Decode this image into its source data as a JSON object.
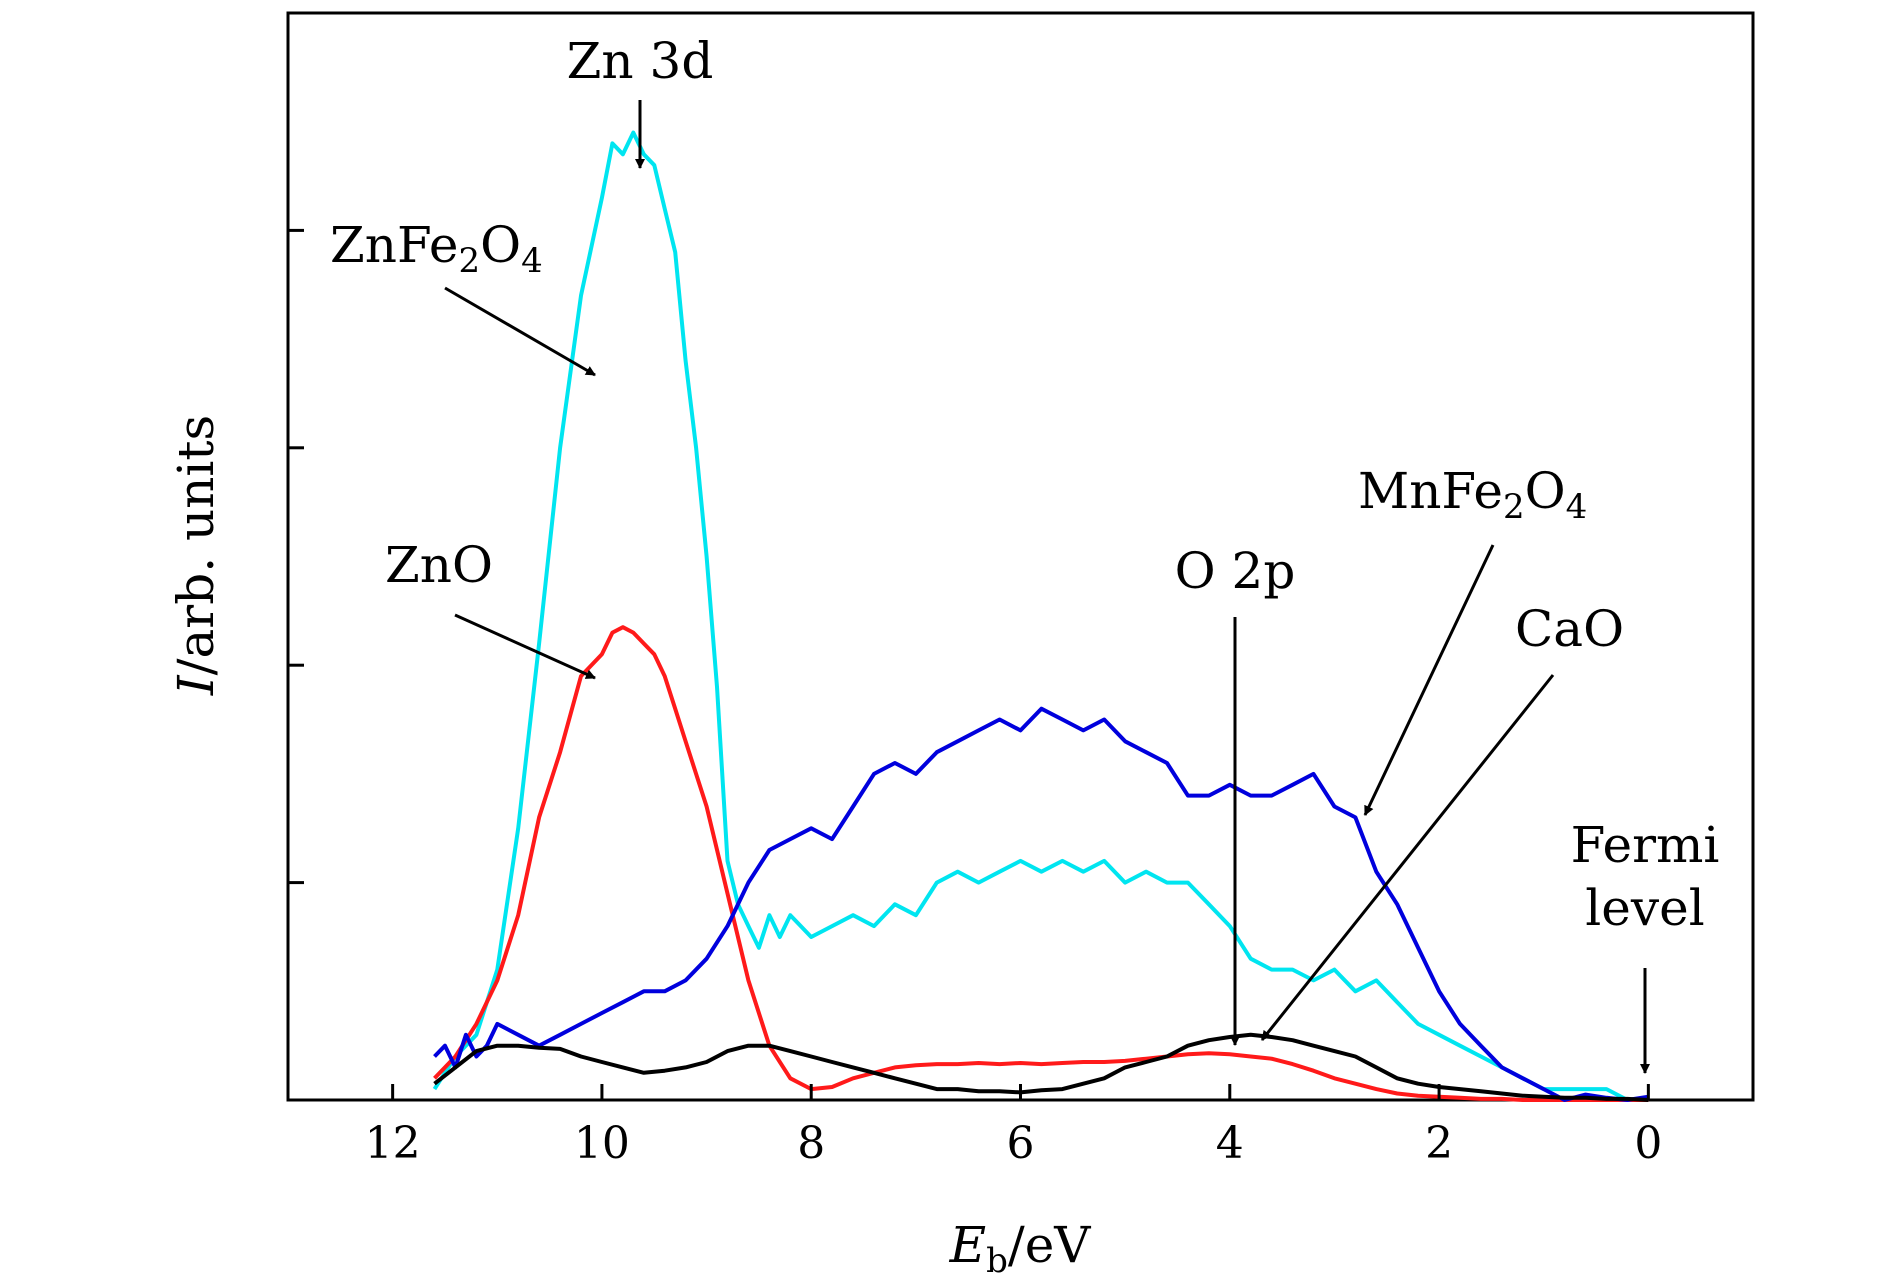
{
  "chart_data": {
    "type": "line",
    "title": "",
    "xlabel": {
      "main": "E",
      "sub": "b",
      "rest": "/eV"
    },
    "ylabel": {
      "main": "I",
      "rest": "/arb. units"
    },
    "xlim": [
      13,
      -1
    ],
    "ylim": [
      0,
      1.0
    ],
    "x_reversed": true,
    "x_ticks": [
      12,
      10,
      8,
      6,
      4,
      2,
      0
    ],
    "y_ticks": [
      0.2,
      0.4,
      0.6,
      0.8,
      1.0
    ],
    "y_tick_labels_shown": false,
    "grid": false,
    "legend": "none",
    "colors": {
      "ZnFe2O4": "#00e5f0",
      "ZnO": "#ff1a1a",
      "MnFe2O4": "#0000dd",
      "CaO": "#000000"
    },
    "series": [
      {
        "name": "ZnFe2O4",
        "x": [
          11.6,
          11.4,
          11.2,
          11.0,
          10.8,
          10.6,
          10.4,
          10.2,
          10.0,
          9.9,
          9.8,
          9.7,
          9.6,
          9.5,
          9.4,
          9.3,
          9.2,
          9.1,
          9.0,
          8.9,
          8.8,
          8.7,
          8.6,
          8.5,
          8.4,
          8.3,
          8.2,
          8.1,
          8.0,
          7.8,
          7.6,
          7.4,
          7.2,
          7.0,
          6.8,
          6.6,
          6.4,
          6.2,
          6.0,
          5.8,
          5.6,
          5.4,
          5.2,
          5.0,
          4.8,
          4.6,
          4.4,
          4.2,
          4.0,
          3.8,
          3.6,
          3.4,
          3.2,
          3.0,
          2.8,
          2.6,
          2.4,
          2.2,
          2.0,
          1.8,
          1.6,
          1.4,
          1.2,
          1.0,
          0.8,
          0.6,
          0.4,
          0.2,
          0.0
        ],
        "y": [
          0.01,
          0.04,
          0.06,
          0.12,
          0.25,
          0.42,
          0.6,
          0.74,
          0.83,
          0.88,
          0.87,
          0.89,
          0.87,
          0.86,
          0.82,
          0.78,
          0.68,
          0.6,
          0.5,
          0.38,
          0.22,
          0.18,
          0.16,
          0.14,
          0.17,
          0.15,
          0.17,
          0.16,
          0.15,
          0.16,
          0.17,
          0.16,
          0.18,
          0.17,
          0.2,
          0.21,
          0.2,
          0.21,
          0.22,
          0.21,
          0.22,
          0.21,
          0.22,
          0.2,
          0.21,
          0.2,
          0.2,
          0.18,
          0.16,
          0.13,
          0.12,
          0.12,
          0.11,
          0.12,
          0.1,
          0.11,
          0.09,
          0.07,
          0.06,
          0.05,
          0.04,
          0.03,
          0.02,
          0.01,
          0.01,
          0.01,
          0.01,
          0.0,
          0.0
        ]
      },
      {
        "name": "ZnO",
        "x": [
          11.6,
          11.4,
          11.2,
          11.0,
          10.8,
          10.6,
          10.4,
          10.2,
          10.0,
          9.9,
          9.8,
          9.7,
          9.6,
          9.5,
          9.4,
          9.3,
          9.2,
          9.0,
          8.8,
          8.6,
          8.4,
          8.2,
          8.0,
          7.8,
          7.6,
          7.4,
          7.2,
          7.0,
          6.8,
          6.6,
          6.4,
          6.2,
          6.0,
          5.8,
          5.6,
          5.4,
          5.2,
          5.0,
          4.8,
          4.6,
          4.4,
          4.2,
          4.0,
          3.8,
          3.6,
          3.4,
          3.2,
          3.0,
          2.8,
          2.6,
          2.4,
          2.2,
          2.0,
          1.8,
          1.6,
          1.4,
          1.2,
          1.0,
          0.8,
          0.6,
          0.4,
          0.2,
          0.0
        ],
        "y": [
          0.02,
          0.04,
          0.07,
          0.11,
          0.17,
          0.26,
          0.32,
          0.39,
          0.41,
          0.43,
          0.435,
          0.43,
          0.42,
          0.41,
          0.39,
          0.36,
          0.33,
          0.27,
          0.19,
          0.11,
          0.05,
          0.02,
          0.01,
          0.012,
          0.02,
          0.025,
          0.03,
          0.032,
          0.033,
          0.033,
          0.034,
          0.033,
          0.034,
          0.033,
          0.034,
          0.035,
          0.035,
          0.036,
          0.038,
          0.04,
          0.042,
          0.043,
          0.042,
          0.04,
          0.038,
          0.033,
          0.027,
          0.02,
          0.015,
          0.01,
          0.006,
          0.004,
          0.003,
          0.002,
          0.001,
          0.001,
          0.0,
          0.0,
          0.0,
          0.0,
          0.0,
          0.0,
          0.0
        ]
      },
      {
        "name": "MnFe2O4",
        "x": [
          11.6,
          11.5,
          11.4,
          11.3,
          11.2,
          11.1,
          11.0,
          10.8,
          10.6,
          10.4,
          10.2,
          10.0,
          9.8,
          9.6,
          9.4,
          9.2,
          9.0,
          8.8,
          8.6,
          8.4,
          8.2,
          8.0,
          7.8,
          7.6,
          7.4,
          7.2,
          7.0,
          6.8,
          6.6,
          6.4,
          6.2,
          6.0,
          5.8,
          5.6,
          5.4,
          5.2,
          5.0,
          4.8,
          4.6,
          4.4,
          4.2,
          4.0,
          3.8,
          3.6,
          3.4,
          3.2,
          3.0,
          2.8,
          2.6,
          2.4,
          2.2,
          2.0,
          1.8,
          1.6,
          1.4,
          1.2,
          1.0,
          0.8,
          0.6,
          0.4,
          0.2,
          0.0
        ],
        "y": [
          0.04,
          0.05,
          0.03,
          0.06,
          0.04,
          0.05,
          0.07,
          0.06,
          0.05,
          0.06,
          0.07,
          0.08,
          0.09,
          0.1,
          0.1,
          0.11,
          0.13,
          0.16,
          0.2,
          0.23,
          0.24,
          0.25,
          0.24,
          0.27,
          0.3,
          0.31,
          0.3,
          0.32,
          0.33,
          0.34,
          0.35,
          0.34,
          0.36,
          0.35,
          0.34,
          0.35,
          0.33,
          0.32,
          0.31,
          0.28,
          0.28,
          0.29,
          0.28,
          0.28,
          0.29,
          0.3,
          0.27,
          0.26,
          0.21,
          0.18,
          0.14,
          0.1,
          0.07,
          0.05,
          0.03,
          0.02,
          0.01,
          0.0,
          0.005,
          0.002,
          0.0,
          0.003
        ]
      },
      {
        "name": "CaO",
        "x": [
          11.6,
          11.4,
          11.2,
          11.0,
          10.8,
          10.6,
          10.4,
          10.2,
          10.0,
          9.8,
          9.6,
          9.4,
          9.2,
          9.0,
          8.8,
          8.6,
          8.4,
          8.2,
          8.0,
          7.8,
          7.6,
          7.4,
          7.2,
          7.0,
          6.8,
          6.6,
          6.4,
          6.2,
          6.0,
          5.8,
          5.6,
          5.4,
          5.2,
          5.0,
          4.8,
          4.6,
          4.4,
          4.2,
          4.0,
          3.8,
          3.6,
          3.4,
          3.2,
          3.0,
          2.8,
          2.6,
          2.4,
          2.2,
          2.0,
          1.8,
          1.6,
          1.4,
          1.2,
          1.0,
          0.8,
          0.6,
          0.4,
          0.2,
          0.0
        ],
        "y": [
          0.015,
          0.03,
          0.045,
          0.05,
          0.05,
          0.048,
          0.047,
          0.04,
          0.035,
          0.03,
          0.025,
          0.027,
          0.03,
          0.035,
          0.045,
          0.05,
          0.05,
          0.045,
          0.04,
          0.035,
          0.03,
          0.025,
          0.02,
          0.015,
          0.01,
          0.01,
          0.008,
          0.008,
          0.007,
          0.009,
          0.01,
          0.015,
          0.02,
          0.03,
          0.035,
          0.04,
          0.05,
          0.055,
          0.058,
          0.06,
          0.058,
          0.055,
          0.05,
          0.045,
          0.04,
          0.03,
          0.02,
          0.015,
          0.012,
          0.01,
          0.008,
          0.006,
          0.004,
          0.003,
          0.002,
          0.002,
          0.001,
          0.001,
          0.0
        ]
      }
    ],
    "annotations": {
      "zn3d": "Zn 3d",
      "znfe2o4": {
        "base": "ZnFe",
        "sub1": "2",
        "mid": "O",
        "sub2": "4"
      },
      "zno": "ZnO",
      "o2p": "O 2p",
      "mnfe2o4": {
        "base": "MnFe",
        "sub1": "2",
        "mid": "O",
        "sub2": "4"
      },
      "cao": "CaO",
      "fermi_line1": "Fermi",
      "fermi_line2": "level"
    }
  }
}
